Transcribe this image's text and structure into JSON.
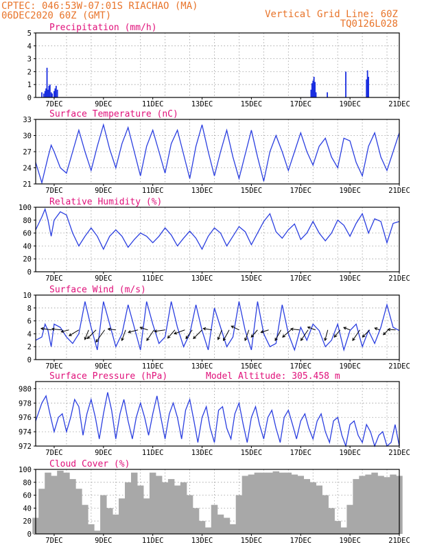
{
  "header": {
    "line1_left": "CPTEC:  046:53W-07:01S  RIACHAO (MA)",
    "line2_left": "06DEC2020 60Z (GMT)",
    "line1_right": "Vertical Grid Line: 60Z",
    "line2_right": "TQ0126L028"
  },
  "chart_data": [
    {
      "id": "precip",
      "type": "bar",
      "title": "Precipitation (mm/h)",
      "xlim": [
        6.25,
        21.0
      ],
      "ylim": [
        0,
        5
      ],
      "yticks": [
        0,
        1,
        2,
        3,
        4,
        5
      ],
      "xtick_labels": [
        "7DEC",
        "9DEC",
        "11DEC",
        "13DEC",
        "15DEC",
        "17DEC",
        "19DEC",
        "21DEC"
      ],
      "x": [
        6.5,
        6.58,
        6.63,
        6.67,
        6.71,
        6.75,
        6.79,
        6.83,
        6.88,
        6.92,
        7.0,
        7.04,
        7.08,
        7.13,
        17.42,
        17.46,
        17.5,
        17.54,
        17.58,
        17.62,
        18.08,
        18.83,
        19.67,
        19.71,
        19.75
      ],
      "values": [
        0.4,
        0.3,
        0.5,
        0.7,
        2.3,
        0.6,
        0.9,
        1.0,
        0.4,
        0.3,
        0.5,
        0.7,
        0.9,
        0.6,
        0.6,
        1.1,
        1.3,
        1.6,
        1.2,
        0.4,
        0.4,
        2.0,
        1.4,
        2.1,
        1.6
      ],
      "color": "#1a2ee0"
    },
    {
      "id": "temp",
      "type": "line",
      "title": "Surface Temperature (nC)",
      "xlim": [
        6.25,
        21.0
      ],
      "ylim": [
        21,
        33
      ],
      "yticks": [
        21,
        24,
        27,
        30,
        33
      ],
      "xtick_labels": [
        "7DEC",
        "9DEC",
        "11DEC",
        "13DEC",
        "15DEC",
        "17DEC",
        "19DEC",
        "21DEC"
      ],
      "x": [
        6.25,
        6.5,
        6.75,
        6.88,
        7.0,
        7.25,
        7.5,
        7.75,
        8.0,
        8.25,
        8.5,
        8.75,
        9.0,
        9.25,
        9.5,
        9.75,
        10.0,
        10.25,
        10.5,
        10.75,
        11.0,
        11.25,
        11.5,
        11.75,
        12.0,
        12.25,
        12.5,
        12.75,
        13.0,
        13.25,
        13.5,
        13.75,
        14.0,
        14.25,
        14.5,
        14.75,
        15.0,
        15.25,
        15.5,
        15.75,
        16.0,
        16.25,
        16.5,
        16.75,
        17.0,
        17.25,
        17.5,
        17.75,
        18.0,
        18.25,
        18.5,
        18.75,
        19.0,
        19.25,
        19.5,
        19.75,
        20.0,
        20.25,
        20.5,
        20.75,
        21.0
      ],
      "values": [
        25.0,
        21.2,
        26.0,
        28.2,
        27.0,
        24.0,
        23.0,
        27.0,
        31.0,
        27.0,
        23.5,
        28.0,
        32.0,
        27.5,
        24.0,
        28.5,
        31.5,
        27.0,
        22.5,
        28.0,
        31.0,
        27.0,
        23.0,
        28.5,
        31.0,
        26.5,
        22.0,
        28.0,
        32.0,
        27.0,
        22.5,
        27.0,
        31.0,
        26.0,
        22.0,
        26.5,
        31.0,
        26.0,
        21.5,
        27.0,
        30.0,
        27.0,
        23.5,
        27.0,
        30.5,
        27.0,
        24.5,
        28.0,
        29.5,
        26.0,
        24.0,
        29.5,
        29.0,
        25.0,
        22.5,
        28.0,
        30.5,
        26.0,
        23.5,
        27.0,
        30.5
      ],
      "color": "#2a3ee0"
    },
    {
      "id": "rh",
      "type": "line",
      "title": "Relative Humidity (%)",
      "xlim": [
        6.25,
        21.0
      ],
      "ylim": [
        0,
        100
      ],
      "yticks": [
        0,
        20,
        40,
        60,
        80,
        100
      ],
      "xtick_labels": [
        "7DEC",
        "9DEC",
        "11DEC",
        "13DEC",
        "15DEC",
        "17DEC",
        "19DEC",
        "21DEC"
      ],
      "x": [
        6.25,
        6.5,
        6.63,
        6.75,
        6.88,
        7.0,
        7.25,
        7.5,
        7.75,
        8.0,
        8.25,
        8.5,
        8.75,
        9.0,
        9.25,
        9.5,
        9.75,
        10.0,
        10.25,
        10.5,
        10.75,
        11.0,
        11.25,
        11.5,
        11.75,
        12.0,
        12.25,
        12.5,
        12.75,
        13.0,
        13.25,
        13.5,
        13.75,
        14.0,
        14.25,
        14.5,
        14.75,
        15.0,
        15.25,
        15.5,
        15.75,
        16.0,
        16.25,
        16.5,
        16.75,
        17.0,
        17.25,
        17.5,
        17.75,
        18.0,
        18.25,
        18.5,
        18.75,
        19.0,
        19.25,
        19.5,
        19.75,
        20.0,
        20.25,
        20.5,
        20.75,
        21.0
      ],
      "values": [
        65,
        85,
        97,
        80,
        55,
        80,
        93,
        88,
        60,
        40,
        55,
        68,
        55,
        35,
        55,
        65,
        55,
        38,
        50,
        60,
        55,
        45,
        55,
        68,
        57,
        40,
        52,
        63,
        52,
        35,
        55,
        68,
        60,
        40,
        55,
        70,
        62,
        42,
        60,
        78,
        90,
        62,
        52,
        65,
        74,
        50,
        60,
        78,
        60,
        48,
        60,
        80,
        72,
        55,
        75,
        90,
        60,
        82,
        78,
        45,
        75,
        78
      ],
      "color": "#2a3ee0"
    },
    {
      "id": "wind",
      "type": "line",
      "title": "Surface Wind (m/s)",
      "xlim": [
        6.25,
        21.0
      ],
      "ylim": [
        0,
        10
      ],
      "yticks": [
        0,
        2,
        4,
        6,
        8,
        10
      ],
      "xtick_labels": [
        "7DEC",
        "9DEC",
        "11DEC",
        "13DEC",
        "15DEC",
        "17DEC",
        "19DEC",
        "21DEC"
      ],
      "x": [
        6.25,
        6.5,
        6.63,
        6.75,
        6.88,
        7.0,
        7.25,
        7.5,
        7.75,
        8.0,
        8.25,
        8.5,
        8.75,
        9.0,
        9.25,
        9.5,
        9.75,
        10.0,
        10.25,
        10.5,
        10.75,
        11.0,
        11.25,
        11.5,
        11.75,
        12.0,
        12.25,
        12.5,
        12.75,
        13.0,
        13.25,
        13.5,
        13.75,
        14.0,
        14.25,
        14.5,
        14.75,
        15.0,
        15.25,
        15.5,
        15.75,
        16.0,
        16.25,
        16.5,
        16.75,
        17.0,
        17.25,
        17.5,
        17.75,
        18.0,
        18.25,
        18.5,
        18.75,
        19.0,
        19.25,
        19.5,
        19.75,
        20.0,
        20.25,
        20.5,
        20.75,
        21.0
      ],
      "values": [
        3.0,
        3.5,
        5.5,
        4.5,
        2.0,
        5.5,
        5.0,
        3.5,
        2.5,
        4.0,
        9.0,
        5.0,
        1.5,
        9.0,
        5.5,
        2.0,
        4.0,
        8.5,
        5.0,
        1.5,
        9.0,
        5.5,
        2.5,
        3.5,
        9.0,
        5.0,
        2.0,
        4.0,
        8.5,
        4.5,
        1.5,
        8.0,
        5.0,
        2.0,
        3.5,
        9.0,
        4.5,
        1.5,
        9.0,
        4.0,
        2.0,
        2.5,
        8.5,
        4.0,
        1.5,
        5.0,
        3.0,
        5.5,
        4.5,
        2.0,
        3.0,
        5.5,
        1.5,
        4.5,
        5.5,
        2.0,
        4.5,
        2.5,
        5.0,
        8.5,
        5.0,
        4.5
      ],
      "arrows": [
        {
          "x": 6.9,
          "u": 2.2,
          "v": 0.3
        },
        {
          "x": 7.3,
          "u": 2.0,
          "v": 0.2
        },
        {
          "x": 7.6,
          "u": 1.6,
          "v": -0.4
        },
        {
          "x": 8.0,
          "u": 2.0,
          "v": -1.2
        },
        {
          "x": 8.4,
          "u": 0.8,
          "v": -2.0
        },
        {
          "x": 8.7,
          "u": 1.8,
          "v": -1.8
        },
        {
          "x": 9.05,
          "u": 1.8,
          "v": -2.5
        },
        {
          "x": 9.5,
          "u": 1.6,
          "v": 0.2
        },
        {
          "x": 9.9,
          "u": 0.8,
          "v": -2.2
        },
        {
          "x": 10.4,
          "u": 2.0,
          "v": -0.5
        },
        {
          "x": 10.8,
          "u": 1.6,
          "v": 0.5
        },
        {
          "x": 11.05,
          "u": 1.5,
          "v": -2.2
        },
        {
          "x": 11.5,
          "u": 2.2,
          "v": -0.3
        },
        {
          "x": 11.9,
          "u": 1.5,
          "v": -1.7
        },
        {
          "x": 12.3,
          "u": 2.2,
          "v": -0.8
        },
        {
          "x": 12.6,
          "u": 1.3,
          "v": -1.8
        },
        {
          "x": 13.0,
          "u": 1.8,
          "v": -1.8
        },
        {
          "x": 13.4,
          "u": 1.8,
          "v": 0.3
        },
        {
          "x": 13.8,
          "u": 0.8,
          "v": -2.0
        },
        {
          "x": 14.1,
          "u": 1.2,
          "v": -2.2
        },
        {
          "x": 14.5,
          "u": 1.6,
          "v": 0.8
        },
        {
          "x": 14.9,
          "u": 0.8,
          "v": -2.2
        },
        {
          "x": 15.25,
          "u": 1.3,
          "v": -1.5
        },
        {
          "x": 15.7,
          "u": 1.6,
          "v": -0.5
        },
        {
          "x": 16.2,
          "u": 1.2,
          "v": -2.2
        },
        {
          "x": 16.6,
          "u": 1.7,
          "v": -1.5
        },
        {
          "x": 16.95,
          "u": 1.8,
          "v": 0.2
        },
        {
          "x": 17.3,
          "u": 1.5,
          "v": -2.2
        },
        {
          "x": 17.6,
          "u": 1.6,
          "v": 0.6
        },
        {
          "x": 18.1,
          "u": 0.6,
          "v": -2.2
        },
        {
          "x": 18.6,
          "u": 1.2,
          "v": -1.5
        },
        {
          "x": 19.0,
          "u": 1.3,
          "v": 0.5
        },
        {
          "x": 19.4,
          "u": 1.5,
          "v": -2.2
        },
        {
          "x": 19.8,
          "u": 1.5,
          "v": -1.5
        },
        {
          "x": 20.2,
          "u": 1.0,
          "v": 0.4
        },
        {
          "x": 20.55,
          "u": 1.0,
          "v": -1.0
        },
        {
          "x": 20.85,
          "u": 1.6,
          "v": 0.1
        }
      ],
      "color": "#2a3ee0"
    },
    {
      "id": "pres",
      "type": "line",
      "title": "Surface Pressure (hPa)",
      "annotation": "Model Altitude: 305.458 m",
      "xlim": [
        6.25,
        21.0
      ],
      "ylim": [
        972,
        981
      ],
      "yticks": [
        972,
        974,
        976,
        978,
        980
      ],
      "xtick_labels": [
        "7DEC",
        "9DEC",
        "11DEC",
        "13DEC",
        "15DEC",
        "17DEC",
        "19DEC",
        "21DEC"
      ],
      "x": [
        6.25,
        6.5,
        6.67,
        6.83,
        7.0,
        7.17,
        7.33,
        7.5,
        7.67,
        7.83,
        8.0,
        8.17,
        8.33,
        8.5,
        8.67,
        8.83,
        9.0,
        9.17,
        9.33,
        9.5,
        9.67,
        9.83,
        10.0,
        10.17,
        10.33,
        10.5,
        10.67,
        10.83,
        11.0,
        11.17,
        11.33,
        11.5,
        11.67,
        11.83,
        12.0,
        12.17,
        12.33,
        12.5,
        12.67,
        12.83,
        13.0,
        13.17,
        13.33,
        13.5,
        13.67,
        13.83,
        14.0,
        14.17,
        14.33,
        14.5,
        14.67,
        14.83,
        15.0,
        15.17,
        15.33,
        15.5,
        15.67,
        15.83,
        16.0,
        16.17,
        16.33,
        16.5,
        16.67,
        16.83,
        17.0,
        17.17,
        17.33,
        17.5,
        17.67,
        17.83,
        18.0,
        18.17,
        18.33,
        18.5,
        18.67,
        18.83,
        19.0,
        19.17,
        19.33,
        19.5,
        19.67,
        19.83,
        20.0,
        20.17,
        20.33,
        20.5,
        20.67,
        20.83,
        21.0
      ],
      "values": [
        975.5,
        978.0,
        979.0,
        976.5,
        974.0,
        976.0,
        976.5,
        974.0,
        976.0,
        978.5,
        977.5,
        973.5,
        976.5,
        978.5,
        976.0,
        973.0,
        976.5,
        979.5,
        977.0,
        973.0,
        976.5,
        978.5,
        975.5,
        973.0,
        976.0,
        978.0,
        976.0,
        973.5,
        976.5,
        979.0,
        976.0,
        973.0,
        976.5,
        978.0,
        976.0,
        973.0,
        977.0,
        978.5,
        975.5,
        972.5,
        976.0,
        977.5,
        974.5,
        972.5,
        977.0,
        977.5,
        974.5,
        973.0,
        976.5,
        978.0,
        975.0,
        972.5,
        976.0,
        977.5,
        975.0,
        973.0,
        976.0,
        977.0,
        974.5,
        972.5,
        976.0,
        977.0,
        975.0,
        973.0,
        975.5,
        976.5,
        974.5,
        973.0,
        975.5,
        976.5,
        974.0,
        972.5,
        975.5,
        976.0,
        973.5,
        972.0,
        975.0,
        975.5,
        973.5,
        972.5,
        975.0,
        974.0,
        972.0,
        973.5,
        974.0,
        972.0,
        972.5,
        975.0,
        972.0
      ],
      "color": "#2a3ee0"
    },
    {
      "id": "cloud",
      "type": "bar",
      "title": "Cloud Cover (%)",
      "xlim": [
        6.25,
        21.0
      ],
      "ylim": [
        0,
        100
      ],
      "yticks": [
        0,
        20,
        40,
        60,
        80,
        100
      ],
      "xtick_labels": [
        "7DEC",
        "9DEC",
        "11DEC",
        "13DEC",
        "15DEC",
        "17DEC",
        "19DEC",
        "21DEC"
      ],
      "x": [
        6.25,
        6.5,
        6.75,
        7.0,
        7.25,
        7.5,
        7.75,
        8.0,
        8.25,
        8.5,
        8.75,
        9.0,
        9.25,
        9.5,
        9.75,
        10.0,
        10.25,
        10.5,
        10.75,
        11.0,
        11.25,
        11.5,
        11.75,
        12.0,
        12.25,
        12.5,
        12.75,
        13.0,
        13.25,
        13.5,
        13.75,
        14.0,
        14.25,
        14.5,
        14.75,
        15.0,
        15.25,
        15.5,
        15.75,
        16.0,
        16.25,
        16.5,
        16.75,
        17.0,
        17.25,
        17.5,
        17.75,
        18.0,
        18.25,
        18.5,
        18.75,
        19.0,
        19.25,
        19.5,
        19.75,
        20.0,
        20.25,
        20.5,
        20.75,
        21.0
      ],
      "values": [
        25,
        70,
        95,
        90,
        98,
        95,
        85,
        70,
        45,
        15,
        5,
        60,
        40,
        30,
        55,
        80,
        95,
        75,
        55,
        95,
        90,
        80,
        85,
        75,
        80,
        60,
        40,
        20,
        10,
        45,
        30,
        25,
        15,
        60,
        90,
        92,
        95,
        95,
        95,
        97,
        95,
        95,
        92,
        90,
        85,
        80,
        75,
        60,
        40,
        20,
        10,
        45,
        85,
        90,
        92,
        95,
        90,
        88,
        92,
        90
      ],
      "color": "#a8a8a8"
    }
  ]
}
